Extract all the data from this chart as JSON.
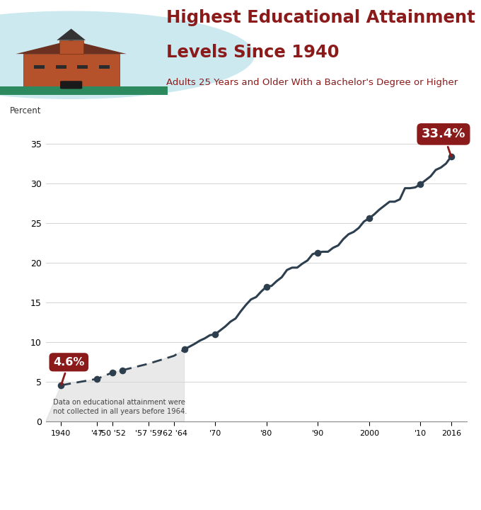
{
  "title_line1": "Highest Educational Attainment",
  "title_line2": "Levels Since 1940",
  "subtitle": "Adults 25 Years and Older With a Bachelor's Degree or Higher",
  "ylabel": "Percent",
  "title_color": "#8B1A1A",
  "subtitle_color": "#8B1A1A",
  "bg_color": "#FFFFFF",
  "footer_bg": "#2E3D49",
  "chart_bg": "#FFFFFF",
  "dashed_color": "#2d3f4e",
  "solid_color": "#2d3f4e",
  "years_dashed": [
    1940,
    1947,
    1950,
    1952,
    1957,
    1959,
    1962,
    1964
  ],
  "values_dashed": [
    4.6,
    5.4,
    6.2,
    6.5,
    7.3,
    7.7,
    8.3,
    9.1
  ],
  "years_solid": [
    1964,
    1966,
    1967,
    1968,
    1969,
    1970,
    1971,
    1972,
    1973,
    1974,
    1975,
    1976,
    1977,
    1978,
    1979,
    1980,
    1981,
    1982,
    1983,
    1984,
    1985,
    1986,
    1987,
    1988,
    1989,
    1990,
    1991,
    1992,
    1993,
    1994,
    1995,
    1996,
    1997,
    1998,
    1999,
    2000,
    2001,
    2002,
    2003,
    2004,
    2005,
    2006,
    2007,
    2008,
    2009,
    2010,
    2011,
    2012,
    2013,
    2014,
    2015,
    2016
  ],
  "values_solid": [
    9.1,
    9.8,
    10.2,
    10.5,
    10.9,
    11.0,
    11.5,
    12.0,
    12.6,
    13.0,
    13.9,
    14.7,
    15.4,
    15.7,
    16.4,
    17.0,
    17.1,
    17.7,
    18.2,
    19.1,
    19.4,
    19.4,
    19.9,
    20.3,
    21.1,
    21.3,
    21.4,
    21.4,
    21.9,
    22.2,
    23.0,
    23.6,
    23.9,
    24.4,
    25.2,
    25.6,
    26.1,
    26.7,
    27.2,
    27.7,
    27.7,
    28.0,
    29.4,
    29.4,
    29.5,
    29.9,
    30.4,
    30.9,
    31.7,
    32.0,
    32.5,
    33.4
  ],
  "highlight_years_solid": [
    1970,
    1980,
    1990,
    2000,
    2010,
    2016
  ],
  "highlight_values_solid": [
    11.0,
    17.0,
    21.3,
    25.6,
    29.9,
    33.4
  ],
  "highlight_years_dashed": [
    1940,
    1947,
    1950,
    1952,
    1964
  ],
  "highlight_values_dashed": [
    4.6,
    5.4,
    6.2,
    6.5,
    9.1
  ],
  "annotation_text": "Data on educational attainment were\nnot collected in all years before 1964.",
  "xlim_left": 1937,
  "xlim_right": 2019,
  "ylim_bottom": 0,
  "ylim_top": 38,
  "xtick_labels": [
    "1940",
    "'47",
    "'50 '52",
    "'57 '59",
    "'62 '64",
    "'70",
    "'80",
    "'90",
    "2000",
    "'10",
    "2016"
  ],
  "xtick_positions": [
    1940,
    1947,
    1950,
    1957,
    1962,
    1970,
    1980,
    1990,
    2000,
    2010,
    2016
  ],
  "ytick_positions": [
    0,
    5,
    10,
    15,
    20,
    25,
    30,
    35
  ],
  "gray_shade_color": "#d8d8d8",
  "bubble_color": "#8B1A1A",
  "dot_size": 35
}
